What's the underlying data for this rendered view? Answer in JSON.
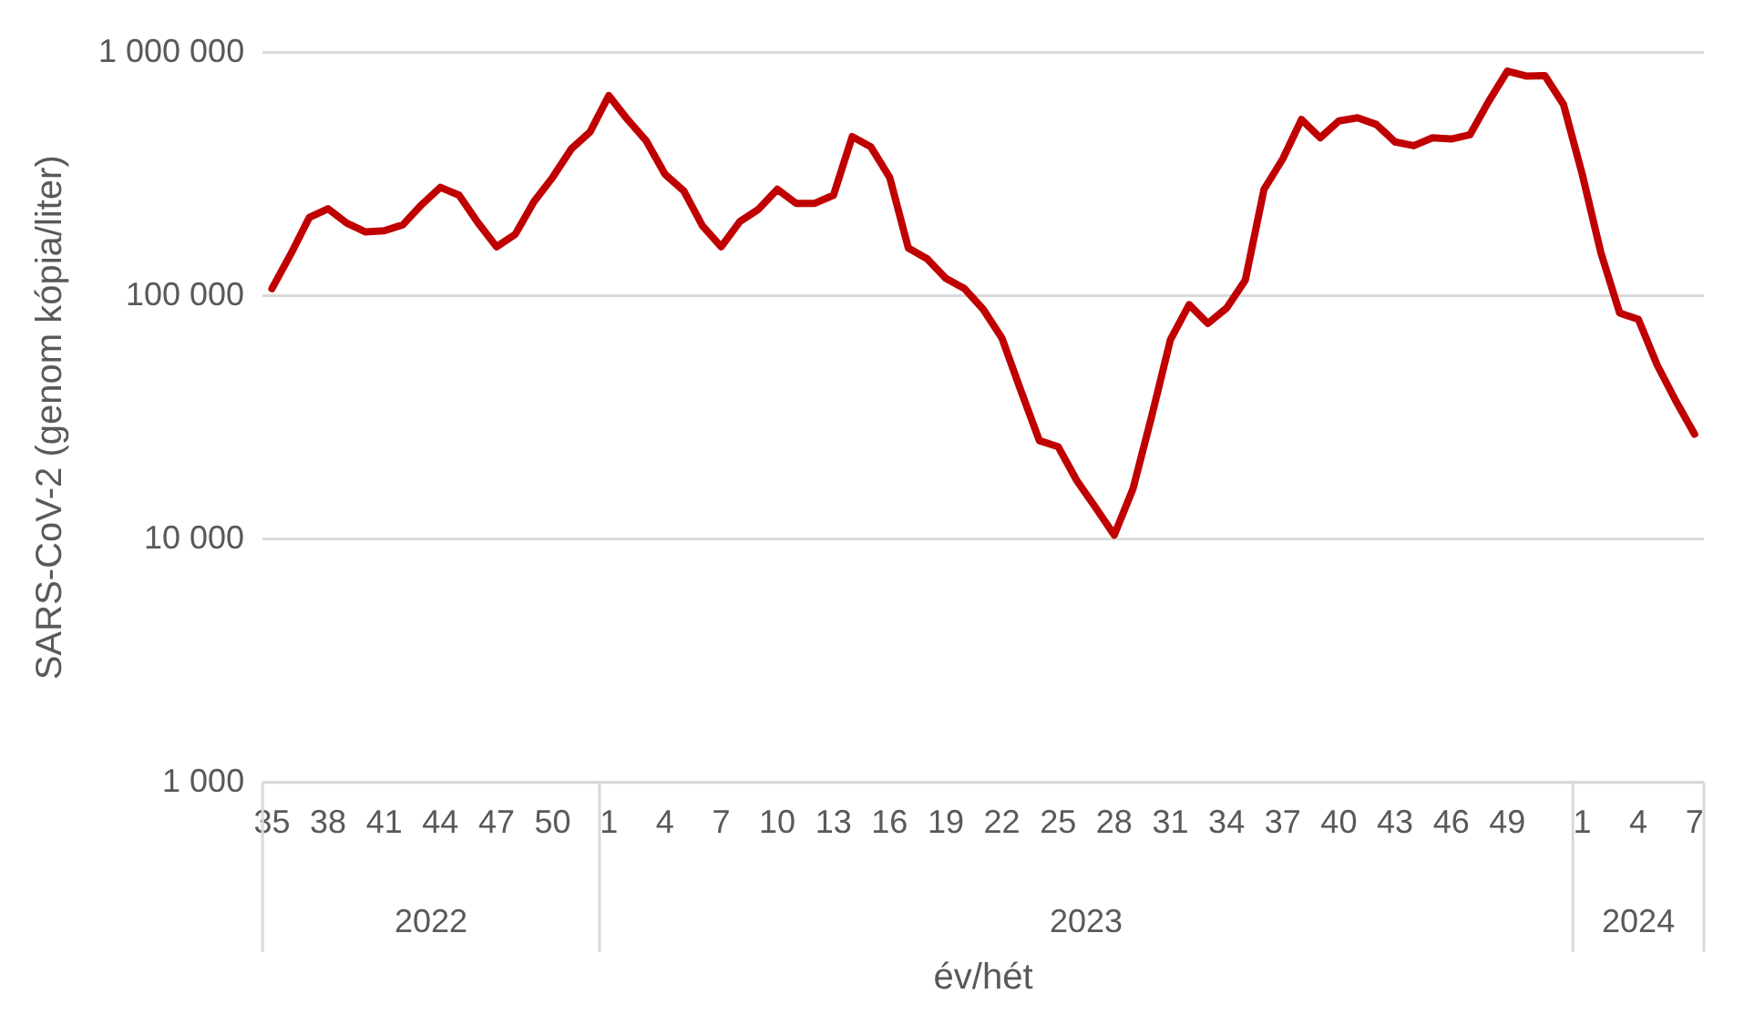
{
  "chart_data": {
    "type": "line",
    "xlabel": "év/hét",
    "ylabel": "SARS-CoV-2 (genom kópia/liter)",
    "categories": [
      "35",
      null,
      null,
      "38",
      null,
      null,
      "41",
      null,
      null,
      "44",
      null,
      null,
      "47",
      null,
      null,
      "50",
      null,
      null,
      "1",
      null,
      null,
      "4",
      null,
      null,
      "7",
      null,
      null,
      "10",
      null,
      null,
      "13",
      null,
      null,
      "16",
      null,
      null,
      "19",
      null,
      null,
      "22",
      null,
      null,
      "25",
      null,
      null,
      "28",
      null,
      null,
      "31",
      null,
      null,
      "34",
      null,
      null,
      "37",
      null,
      null,
      "40",
      null,
      null,
      "43",
      null,
      null,
      "46",
      null,
      null,
      "49",
      null,
      null,
      null,
      "1",
      null,
      null,
      "4",
      null,
      null,
      "7"
    ],
    "series": [
      {
        "color": "#c00000",
        "values": [
          107000,
          148000,
          210000,
          228000,
          199000,
          183000,
          185000,
          196000,
          237000,
          279000,
          259000,
          200000,
          159000,
          179000,
          244000,
          307000,
          402000,
          472000,
          665000,
          530000,
          433000,
          316000,
          270000,
          194000,
          159000,
          202000,
          227000,
          274000,
          240000,
          240000,
          259000,
          451000,
          409000,
          307000,
          157000,
          142000,
          118000,
          107000,
          88000,
          67000,
          41000,
          25400,
          24000,
          17400,
          13500,
          10400,
          16100,
          32000,
          66000,
          92000,
          77000,
          89000,
          116000,
          274000,
          365000,
          530000,
          446000,
          523000,
          539000,
          506000,
          429000,
          414000,
          446000,
          441000,
          459000,
          629000,
          838000,
          800000,
          804000,
          611000,
          316000,
          150000,
          85000,
          80000,
          52000,
          37000,
          27000
        ]
      }
    ],
    "log": true,
    "ylim": [
      1000,
      1000000
    ],
    "yticks": [
      {
        "value": 1000,
        "label": "1 000"
      },
      {
        "value": 10000,
        "label": "10 000"
      },
      {
        "value": 100000,
        "label": "100 000"
      },
      {
        "value": 1000000,
        "label": "1 000 000"
      }
    ],
    "grid": "y",
    "legend": false,
    "marker": "none",
    "line_style": "solid",
    "annotations": [
      "2022",
      "2023",
      "2024"
    ]
  }
}
